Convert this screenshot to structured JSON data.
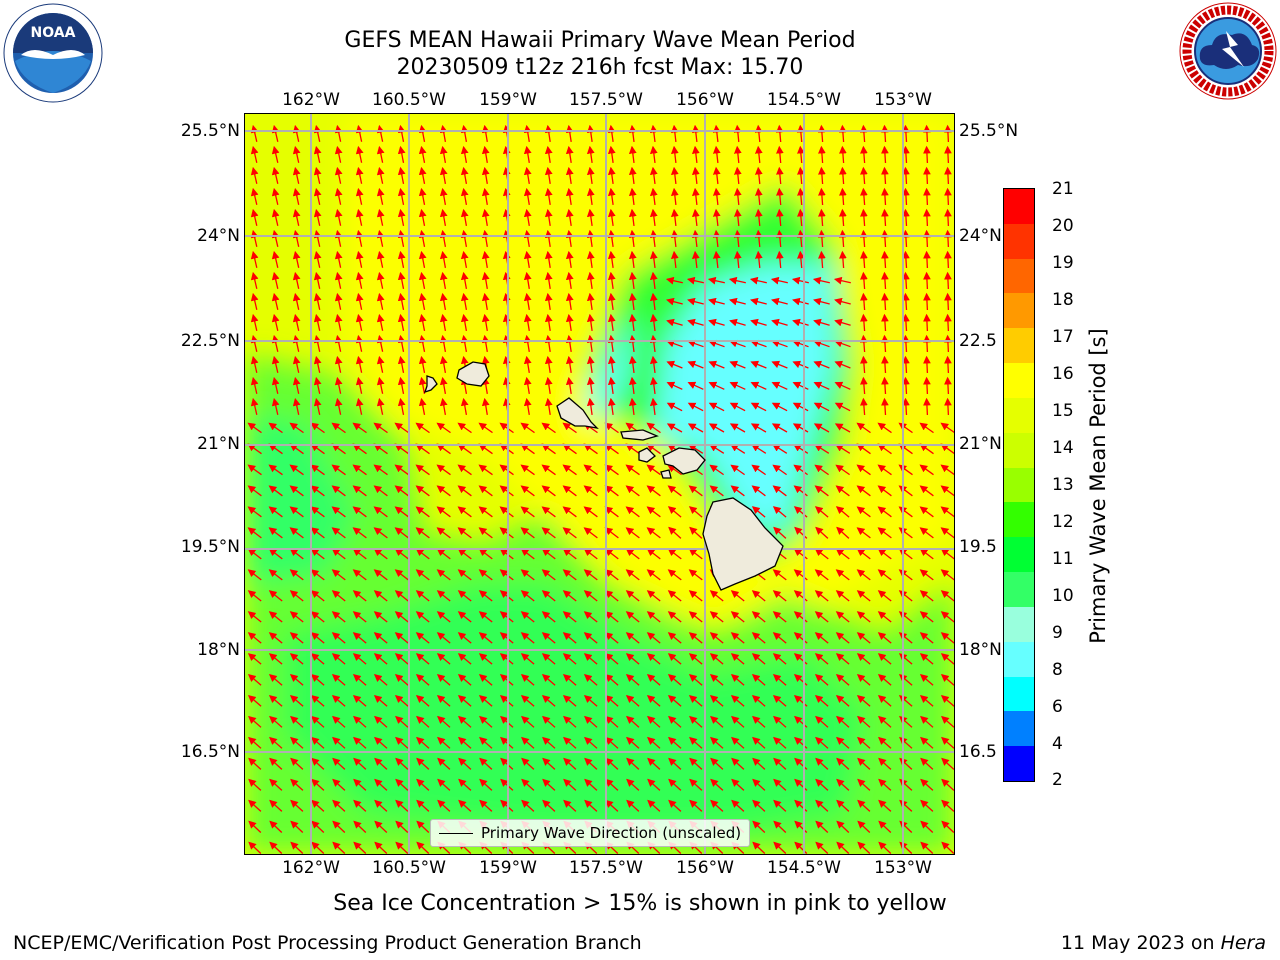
{
  "title": {
    "line1": "GEFS MEAN Hawaii Primary Wave Mean Period",
    "line2": "20230509 t12z 216h fcst   Max: 15.70"
  },
  "logos": {
    "left": {
      "text": "NOAA",
      "ring_text": "NATIONAL OCEANIC AND ATMOSPHERIC ADMINISTRATION · U.S. DEPARTMENT OF COMMERCE"
    },
    "right": {
      "ring_text": "NATIONAL WEATHER SERVICE"
    }
  },
  "map": {
    "lon_ticks": [
      "162°W",
      "160.5°W",
      "159°W",
      "157.5°W",
      "156°W",
      "154.5°W",
      "153°W"
    ],
    "lat_ticks": [
      "25.5°N",
      "24°N",
      "22.5°N",
      "21°N",
      "19.5°N",
      "18°N",
      "16.5°N"
    ],
    "lat_ticks_right": [
      "25.5°N",
      "24°N",
      "22.5",
      "21°N",
      "19.5",
      "18°N",
      "16.5"
    ],
    "legend": "Primary Wave Direction (unscaled)",
    "colors": {
      "land": "#efebdc",
      "grid": "#b0b0b0",
      "arrow": "#ff0000"
    }
  },
  "colorbar": {
    "label": "Primary Wave Mean Period [s]",
    "tick_labels": [
      "21",
      "20",
      "19",
      "18",
      "17",
      "16",
      "15",
      "14",
      "13",
      "12",
      "11",
      "10",
      "9",
      "8",
      "6",
      "4",
      "2"
    ],
    "colors": [
      "#ff0000",
      "#ff3300",
      "#ff6600",
      "#ff9900",
      "#ffcc00",
      "#ffff00",
      "#e5ff00",
      "#ccff00",
      "#99ff00",
      "#33ff00",
      "#00ff33",
      "#33ff66",
      "#99ffdd",
      "#66ffff",
      "#00ffff",
      "#0080ff",
      "#0000ff"
    ]
  },
  "caption": "Sea Ice Concentration > 15% is shown in pink to yellow",
  "footer": {
    "left": "NCEP/EMC/Verification Post Processing Product Generation Branch",
    "right_date": "11 May 2023 on ",
    "right_host": "Hera"
  }
}
